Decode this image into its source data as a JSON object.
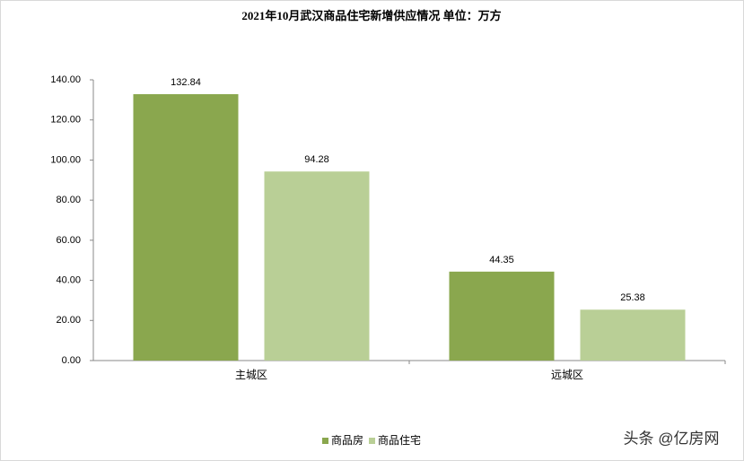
{
  "chart_data": {
    "type": "bar",
    "title": "2021年10月武汉商品住宅新增供应情况  单位：万方",
    "categories": [
      "主城区",
      "远城区"
    ],
    "series": [
      {
        "name": "商品房",
        "color": "#8aa74e",
        "values": [
          132.84,
          44.35
        ]
      },
      {
        "name": "商品住宅",
        "color": "#b9cf96",
        "values": [
          94.28,
          25.38
        ]
      }
    ],
    "ylim": [
      0,
      140
    ],
    "yticks": [
      {
        "value": 0,
        "label": "0.00"
      },
      {
        "value": 20,
        "label": "20.00"
      },
      {
        "value": 40,
        "label": "40.00"
      },
      {
        "value": 60,
        "label": "60.00"
      },
      {
        "value": 80,
        "label": "80.00"
      },
      {
        "value": 100,
        "label": "100.00"
      },
      {
        "value": 120,
        "label": "120.00"
      },
      {
        "value": 140,
        "label": "140.00"
      }
    ],
    "legend": "bottom",
    "watermark": "头条 @亿房网"
  }
}
